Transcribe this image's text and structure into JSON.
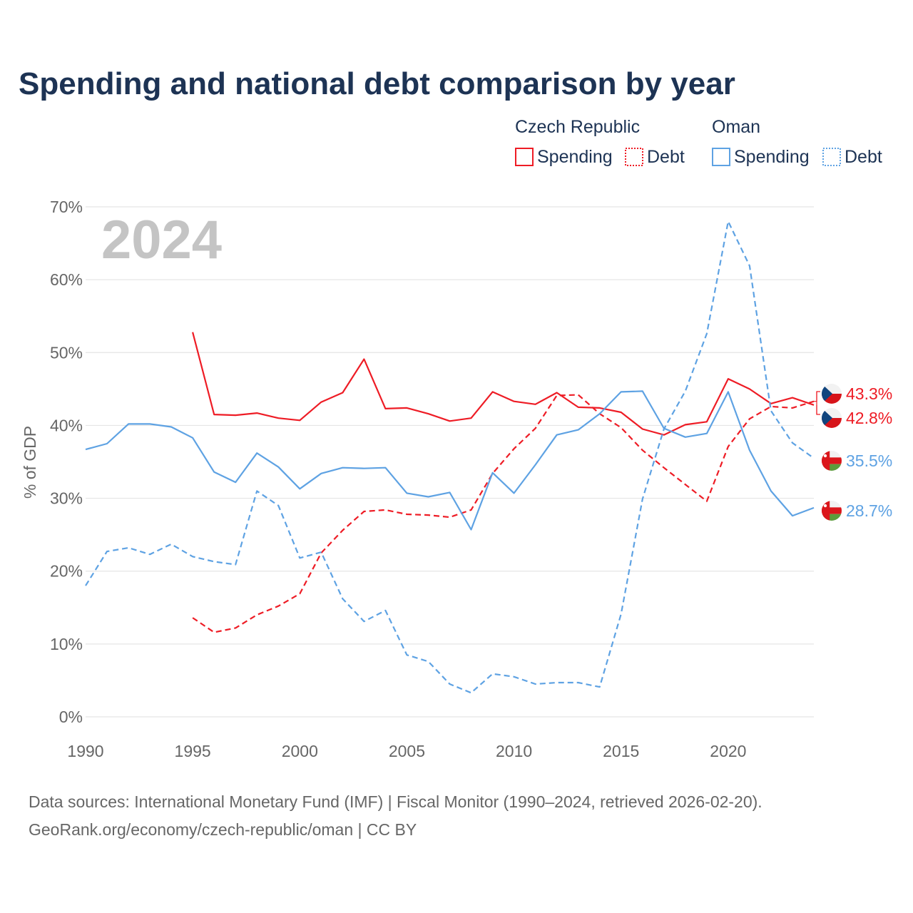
{
  "colors": {
    "czech": "#ee1c25",
    "oman": "#5ea2e3",
    "title": "#1d3354",
    "grid": "#e5e5e5",
    "text": "#666666",
    "year": "#c4c4c4"
  },
  "chart_data": {
    "type": "line",
    "title": "Spending and national debt comparison by year",
    "year_label": "2024",
    "ylabel": "% of GDP",
    "xlabel": "",
    "xlim": [
      1990,
      2024
    ],
    "ylim": [
      0,
      70
    ],
    "x_ticks": [
      1990,
      1995,
      2000,
      2005,
      2010,
      2015,
      2020
    ],
    "y_ticks": [
      0,
      10,
      20,
      30,
      40,
      50,
      60,
      70
    ],
    "y_tick_labels": [
      "0%",
      "10%",
      "20%",
      "30%",
      "40%",
      "50%",
      "60%",
      "70%"
    ],
    "grid": true,
    "legend": {
      "groups": [
        {
          "country": "Czech Republic",
          "items": [
            {
              "label": "Spending",
              "style": "solid"
            },
            {
              "label": "Debt",
              "style": "dotted"
            }
          ]
        },
        {
          "country": "Oman",
          "items": [
            {
              "label": "Spending",
              "style": "solid"
            },
            {
              "label": "Debt",
              "style": "dotted"
            }
          ]
        }
      ]
    },
    "series": [
      {
        "name": "Czech Republic Spending",
        "country": "czech",
        "style": "solid",
        "x": [
          1995,
          1996,
          1997,
          1998,
          1999,
          2000,
          2001,
          2002,
          2003,
          2004,
          2005,
          2006,
          2007,
          2008,
          2009,
          2010,
          2011,
          2012,
          2013,
          2014,
          2015,
          2016,
          2017,
          2018,
          2019,
          2020,
          2021,
          2022,
          2023,
          2024
        ],
        "values": [
          52.8,
          41.5,
          41.4,
          41.7,
          41.0,
          40.7,
          43.2,
          44.5,
          49.1,
          42.3,
          42.4,
          41.6,
          40.6,
          41.0,
          44.6,
          43.3,
          42.9,
          44.5,
          42.5,
          42.4,
          41.8,
          39.5,
          38.7,
          40.1,
          40.5,
          46.4,
          45.0,
          43.0,
          43.8,
          42.8
        ],
        "end_label": "42.8%"
      },
      {
        "name": "Czech Republic Debt",
        "country": "czech",
        "style": "dashed",
        "x": [
          1995,
          1996,
          1997,
          1998,
          1999,
          2000,
          2001,
          2002,
          2003,
          2004,
          2005,
          2006,
          2007,
          2008,
          2009,
          2010,
          2011,
          2012,
          2013,
          2014,
          2015,
          2016,
          2017,
          2018,
          2019,
          2020,
          2021,
          2022,
          2023,
          2024
        ],
        "values": [
          13.6,
          11.6,
          12.2,
          14.0,
          15.2,
          16.9,
          22.5,
          25.6,
          28.2,
          28.4,
          27.8,
          27.7,
          27.4,
          28.4,
          33.4,
          36.8,
          39.6,
          44.1,
          44.2,
          41.6,
          39.7,
          36.6,
          34.2,
          31.9,
          29.6,
          37.1,
          40.9,
          42.6,
          42.4,
          43.3
        ],
        "end_label": "43.3%"
      },
      {
        "name": "Oman Spending",
        "country": "oman",
        "style": "solid",
        "x": [
          1990,
          1991,
          1992,
          1993,
          1994,
          1995,
          1996,
          1997,
          1998,
          1999,
          2000,
          2001,
          2002,
          2003,
          2004,
          2005,
          2006,
          2007,
          2008,
          2009,
          2010,
          2011,
          2012,
          2013,
          2014,
          2015,
          2016,
          2017,
          2018,
          2019,
          2020,
          2021,
          2022,
          2023,
          2024
        ],
        "values": [
          36.7,
          37.5,
          40.2,
          40.2,
          39.8,
          38.3,
          33.6,
          32.2,
          36.2,
          34.3,
          31.3,
          33.4,
          34.2,
          34.1,
          34.2,
          30.7,
          30.2,
          30.8,
          25.7,
          33.5,
          30.7,
          34.6,
          38.7,
          39.4,
          41.6,
          44.6,
          44.7,
          39.6,
          38.4,
          38.9,
          44.6,
          36.6,
          31.0,
          27.6,
          28.7
        ],
        "end_label": "28.7%"
      },
      {
        "name": "Oman Debt",
        "country": "oman",
        "style": "dashed",
        "x": [
          1990,
          1991,
          1992,
          1993,
          1994,
          1995,
          1996,
          1997,
          1998,
          1999,
          2000,
          2001,
          2002,
          2003,
          2004,
          2005,
          2006,
          2007,
          2008,
          2009,
          2010,
          2011,
          2012,
          2013,
          2014,
          2015,
          2016,
          2017,
          2018,
          2019,
          2020,
          2021,
          2022,
          2023,
          2024
        ],
        "values": [
          18.0,
          22.7,
          23.2,
          22.3,
          23.7,
          22.0,
          21.3,
          20.9,
          31.0,
          29.0,
          21.8,
          22.6,
          16.2,
          13.1,
          14.6,
          8.5,
          7.6,
          4.5,
          3.3,
          5.9,
          5.5,
          4.5,
          4.7,
          4.7,
          4.1,
          14.1,
          29.9,
          39.5,
          44.7,
          52.6,
          68.0,
          61.9,
          42.0,
          37.6,
          35.5
        ],
        "end_label": "35.5%"
      }
    ],
    "source_lines": [
      "Data sources: International Monetary Fund (IMF) | Fiscal Monitor (1990–2024, retrieved 2026-02-20).",
      "GeoRank.org/economy/czech-republic/oman | CC BY"
    ]
  }
}
